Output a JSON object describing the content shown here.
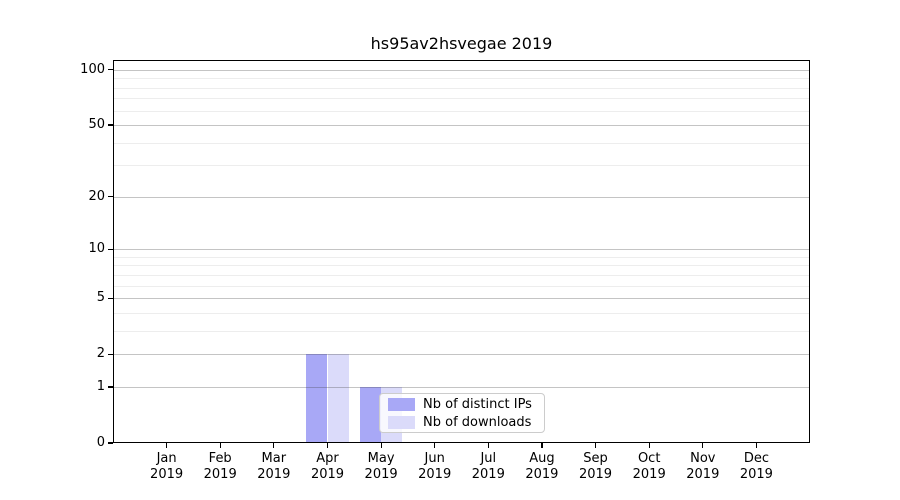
{
  "chart_data": {
    "type": "bar",
    "title": "hs95av2hsvegae 2019",
    "yscale": "log1p",
    "ylim": [
      0,
      113
    ],
    "grid": true,
    "legend_position": "lower-center-inside",
    "categories": [
      "Jan",
      "Feb",
      "Mar",
      "Apr",
      "May",
      "Jun",
      "Jul",
      "Aug",
      "Sep",
      "Oct",
      "Nov",
      "Dec"
    ],
    "x_year_label": "2019",
    "yticks": [
      0,
      1,
      2,
      5,
      10,
      20,
      50,
      100
    ],
    "minor_gridlines": [
      3,
      4,
      6,
      7,
      8,
      9,
      30,
      40,
      60,
      70,
      80,
      90
    ],
    "series": [
      {
        "name": "Nb of distinct IPs",
        "color": "#a8a8f6",
        "values": [
          0,
          0,
          0,
          2,
          1,
          0,
          0,
          0,
          0,
          0,
          0,
          0
        ]
      },
      {
        "name": "Nb of downloads",
        "color": "#dbdbfa",
        "values": [
          0,
          0,
          0,
          2,
          1,
          0,
          0,
          0,
          0,
          0,
          0,
          0
        ]
      }
    ]
  }
}
